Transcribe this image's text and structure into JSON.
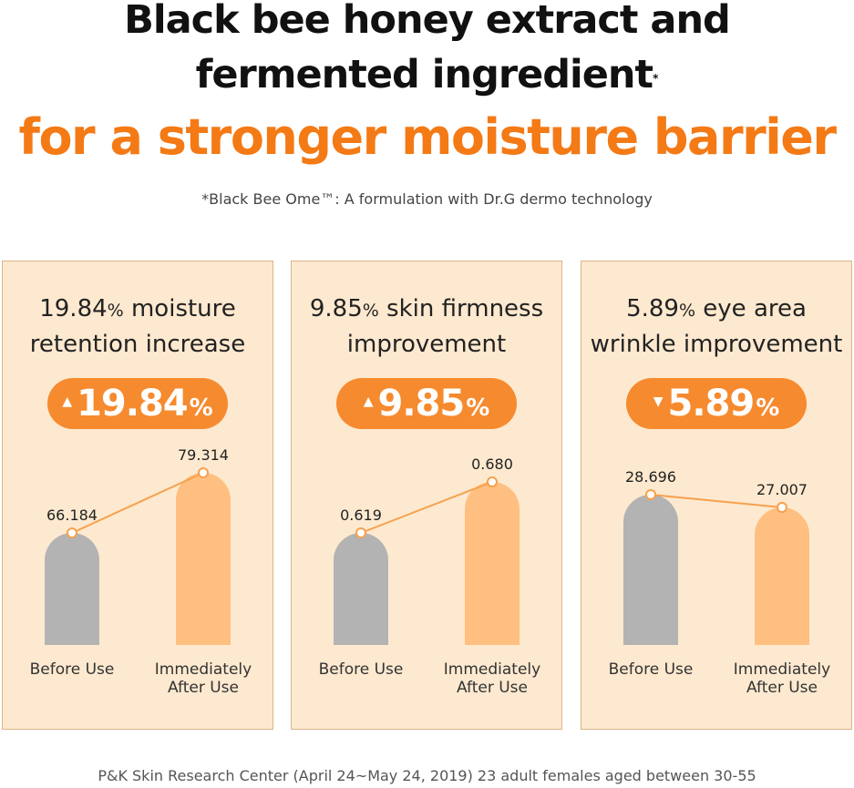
{
  "header": {
    "line1": "Black bee honey extract and",
    "line2": "fermented ingredient",
    "line2_mark": "*",
    "line3": "for a stronger moisture barrier",
    "footnote": "*Black Bee Ome™: A formulation with Dr.G dermo technology"
  },
  "colors": {
    "accent": "#f47a16",
    "badge": "#f68a2e",
    "card_bg": "#fde9cf",
    "card_border": "#d9b48a",
    "before_bar": "#b3b3b3",
    "after_bar": "#ffbf80",
    "line": "#f7a04d"
  },
  "chart_data": [
    {
      "type": "bar",
      "title_line1_value": "19.84",
      "title_line1_pct": "%",
      "title_line1_rest": " moisture",
      "title_line2": "retention increase",
      "badge": {
        "direction": "up",
        "arrow": "▲",
        "value": "19.84",
        "unit": "%"
      },
      "categories": [
        "Before Use",
        "Immediately\nAfter Use"
      ],
      "category_lines": [
        [
          "Before Use"
        ],
        [
          "Immediately",
          "After Use"
        ]
      ],
      "values": [
        66.184,
        79.314
      ],
      "value_labels": [
        "66.184",
        "79.314"
      ]
    },
    {
      "type": "bar",
      "title_line1_value": "9.85",
      "title_line1_pct": "%",
      "title_line1_rest": " skin firmness",
      "title_line2": "improvement",
      "badge": {
        "direction": "up",
        "arrow": "▲",
        "value": "9.85",
        "unit": "%"
      },
      "categories": [
        "Before Use",
        "Immediately\nAfter Use"
      ],
      "category_lines": [
        [
          "Before Use"
        ],
        [
          "Immediately",
          "After Use"
        ]
      ],
      "values": [
        0.619,
        0.68
      ],
      "value_labels": [
        "0.619",
        "0.680"
      ]
    },
    {
      "type": "bar",
      "title_line1_value": "5.89",
      "title_line1_pct": "%",
      "title_line1_rest": " eye area",
      "title_line2": "wrinkle improvement",
      "badge": {
        "direction": "down",
        "arrow": "▼",
        "value": "5.89",
        "unit": "%"
      },
      "categories": [
        "Before Use",
        "Immediately\nAfter Use"
      ],
      "category_lines": [
        [
          "Before Use"
        ],
        [
          "Immediately",
          "After Use"
        ]
      ],
      "values": [
        28.696,
        27.007
      ],
      "value_labels": [
        "28.696",
        "27.007"
      ]
    }
  ],
  "source": "P&K Skin Research Center (April 24~May 24, 2019) 23 adult females aged between 30-55"
}
